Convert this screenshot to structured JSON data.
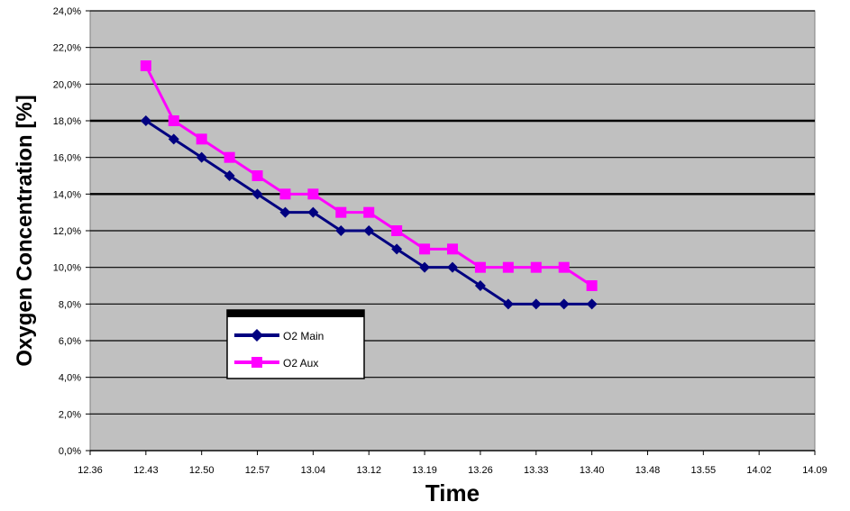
{
  "chart_data": {
    "type": "line",
    "xlabel": "Time",
    "ylabel": "Oxygen Concentration [%]",
    "x_ticks": [
      "12.36",
      "12.43",
      "12.50",
      "12.57",
      "13.04",
      "13.12",
      "13.19",
      "13.26",
      "13.33",
      "13.40",
      "13.48",
      "13.55",
      "14.02",
      "14.09"
    ],
    "y_ticks": [
      "0,0%",
      "2,0%",
      "4,0%",
      "6,0%",
      "8,0%",
      "10,0%",
      "12,0%",
      "14,0%",
      "16,0%",
      "18,0%",
      "20,0%",
      "22,0%",
      "24,0%"
    ],
    "ylim": [
      0,
      24
    ],
    "y_tick_step": 2,
    "x_tick_count": 14,
    "x_start_index": 1,
    "x_step": 0.5,
    "grid": true,
    "series": [
      {
        "name": "O2 Main",
        "color": "#000080",
        "marker": "diamond",
        "values": [
          18,
          17,
          16,
          15,
          14,
          13,
          13,
          12,
          12,
          11,
          10,
          10,
          9,
          8,
          8,
          8,
          8
        ]
      },
      {
        "name": "O2 Aux",
        "color": "#ff00ff",
        "marker": "square",
        "values": [
          21,
          18,
          17,
          16,
          15,
          14,
          14,
          13,
          13,
          12,
          11,
          11,
          10,
          10,
          10,
          10,
          9
        ]
      }
    ],
    "legend_position": "lower-left inside plot",
    "plot_background": "#c0c0c0"
  }
}
